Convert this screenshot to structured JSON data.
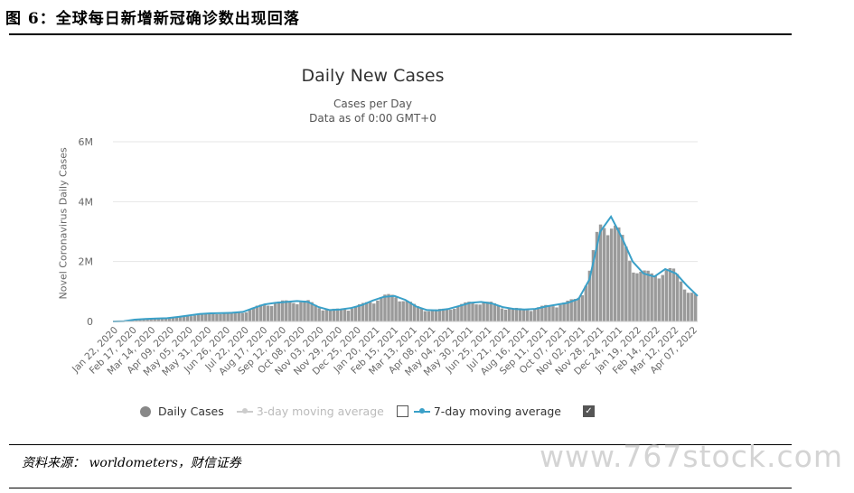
{
  "figure": {
    "title": "图 6：全球每日新增新冠确诊数出现回落",
    "source": "资料来源： worldometers，财信证券",
    "watermark": "www.767stock.com"
  },
  "legend": {
    "daily": "Daily Cases",
    "ma3": "3-day moving average",
    "ma7": "7-day moving average",
    "checkmark": "✓"
  },
  "colors": {
    "bars": "#9a9a9a",
    "ma7": "#3aa0c8",
    "grid": "#e6e6e6"
  },
  "chart_data": {
    "type": "bar",
    "title": "Daily New Cases",
    "subtitle_1": "Cases per Day",
    "subtitle_2": "Data as of 0:00 GMT+0",
    "ylabel": "Novel Coronavirus Daily Cases",
    "ylim": [
      0,
      6000000
    ],
    "yticks": [
      0,
      2000000,
      4000000,
      6000000
    ],
    "ytick_labels": [
      "0",
      "2M",
      "4M",
      "6M"
    ],
    "xtick_labels": [
      "Jan 22, 2020",
      "Feb 17, 2020",
      "Mar 14, 2020",
      "Apr 09, 2020",
      "May 05, 2020",
      "May 31, 2020",
      "Jun 26, 2020",
      "Jul 22, 2020",
      "Aug 17, 2020",
      "Sep 12, 2020",
      "Oct 08, 2020",
      "Nov 03, 2020",
      "Nov 29, 2020",
      "Dec 25, 2020",
      "Jan 20, 2021",
      "Feb 15, 2021",
      "Mar 13, 2021",
      "Apr 08, 2021",
      "May 04, 2021",
      "May 30, 2021",
      "Jun 25, 2021",
      "Jul 21, 2021",
      "Aug 16, 2021",
      "Sep 11, 2021",
      "Oct 07, 2021",
      "Nov 02, 2021",
      "Nov 28, 2021",
      "Dec 24, 2021",
      "Jan 19, 2022",
      "Feb 14, 2022",
      "Mar 12, 2022",
      "Apr 07, 2022"
    ],
    "series": [
      {
        "name": "7-day moving average",
        "values": [
          0,
          5000,
          60000,
          80000,
          95000,
          110000,
          150000,
          200000,
          250000,
          270000,
          280000,
          290000,
          320000,
          450000,
          570000,
          620000,
          650000,
          680000,
          650000,
          480000,
          380000,
          400000,
          450000,
          550000,
          700000,
          820000,
          850000,
          720000,
          500000,
          380000,
          370000,
          420000,
          520000,
          620000,
          650000,
          600000,
          480000,
          420000,
          400000,
          420000,
          500000,
          560000,
          620000,
          750000,
          1400000,
          3000000,
          3500000,
          2800000,
          2000000,
          1600000,
          1500000,
          1750000,
          1600000,
          1200000,
          850000
        ]
      }
    ],
    "grid": true,
    "legend_position": "bottom"
  }
}
